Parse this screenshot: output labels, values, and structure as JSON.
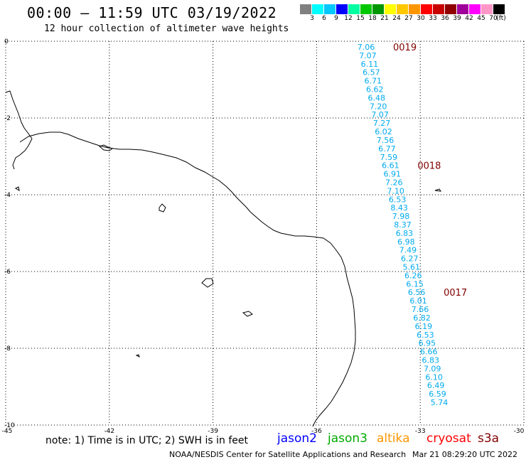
{
  "header": {
    "title": "00:00 – 11:59 UTC 03/19/2022",
    "subtitle": "12 hour collection of altimeter wave heights"
  },
  "colorbar": {
    "colors": [
      "#808080",
      "#00ffff",
      "#00c8ff",
      "#0000ff",
      "#00ffa0",
      "#00c800",
      "#009600",
      "#ffff00",
      "#ffc800",
      "#ff9600",
      "#ff0000",
      "#c80000",
      "#900000",
      "#a0009a",
      "#ff00ff",
      "#ff96c8",
      "#000000"
    ],
    "labels": [
      "3",
      "6",
      "9",
      "12",
      "15",
      "18",
      "21",
      "24",
      "27",
      "30",
      "33",
      "36",
      "39",
      "42",
      "45",
      "70",
      "(ft)"
    ]
  },
  "axes": {
    "lat_labels": [
      "0",
      "-2",
      "-4",
      "-6",
      "-8",
      "-10"
    ],
    "lon_labels": [
      "-45",
      "-42",
      "-39",
      "-36",
      "-33",
      "-30"
    ],
    "lat_values": [
      0,
      -2,
      -4,
      -6,
      -8,
      -10
    ],
    "lon_values": [
      -45,
      -42,
      -39,
      -36,
      -33,
      -30
    ]
  },
  "track": {
    "color": "#00aaee",
    "values": [
      "7.06",
      "7.07",
      "6.11",
      "6.57",
      "6.71",
      "6.62",
      "6.48",
      "7.20",
      "7.07",
      "7.27",
      "6.02",
      "7.56",
      "6.77",
      "7.59",
      "6.61",
      "6.91",
      "7.26",
      "7.10",
      "6.53",
      "8.43",
      "7.98",
      "8.37",
      "6.83",
      "6.98",
      "7.49",
      "6.27",
      "5.61",
      "6.26",
      "6.15",
      "6.56",
      "6.01",
      "7.66",
      "6.82",
      "6.19",
      "6.53",
      "6.95",
      "6.66",
      "6.83",
      "7.09",
      "6.10",
      "6.49",
      "6.59",
      "5.74"
    ]
  },
  "time_labels": {
    "color": "#800000",
    "items": [
      "0019",
      "0018",
      "0017"
    ]
  },
  "footer": {
    "note": "note: 1) Time is in UTC; 2) SWH is in feet",
    "satellites": [
      {
        "name": "jason2",
        "color": "#0000ff"
      },
      {
        "name": "jason3",
        "color": "#00aa00"
      },
      {
        "name": "altika",
        "color": "#ff9600"
      },
      {
        "name": "cryosat",
        "color": "#ff0000"
      },
      {
        "name": "s3a",
        "color": "#800000"
      }
    ],
    "credit": "NOAA/NESDIS Center for Satellite Applications and Research",
    "stamp": "Mar 21 08:29:20 UTC 2022"
  }
}
